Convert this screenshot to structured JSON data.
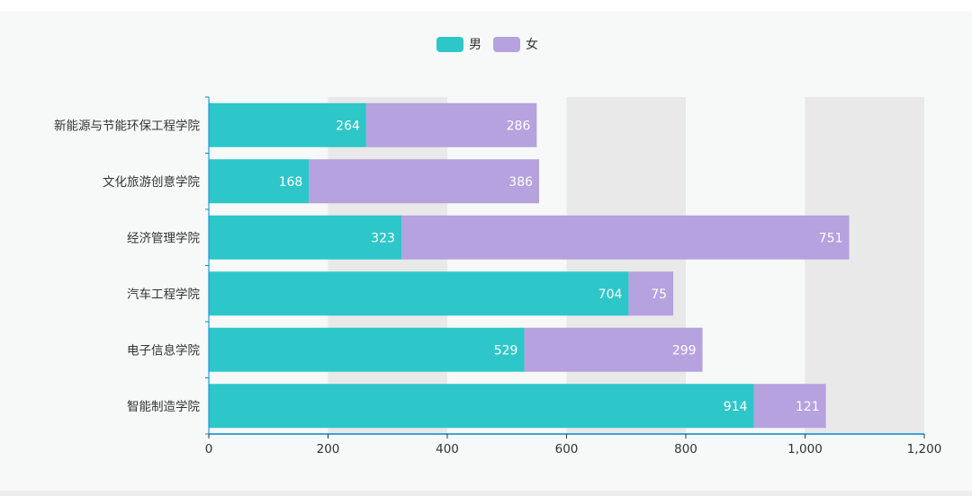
{
  "chart_data": {
    "type": "bar",
    "orientation": "horizontal",
    "stacked": true,
    "categories": [
      "新能源与节能环保工程学院",
      "文化旅游创意学院",
      "经济管理学院",
      "汽车工程学院",
      "电子信息学院",
      "智能制造学院"
    ],
    "series": [
      {
        "name": "男",
        "values": [
          264,
          168,
          323,
          704,
          529,
          914
        ]
      },
      {
        "name": "女",
        "values": [
          286,
          386,
          751,
          75,
          299,
          121
        ]
      }
    ],
    "xlim": [
      0,
      1200
    ],
    "xticks": [
      0,
      200,
      400,
      600,
      800,
      1000,
      1200
    ],
    "xtick_labels": [
      "0",
      "200",
      "400",
      "600",
      "800",
      "1,000",
      "1,200"
    ],
    "legend_position": "top-center",
    "grid": "alternating vertical bands"
  },
  "legend": {
    "male": "男",
    "female": "女"
  },
  "colors": {
    "male": "#2ec7c9",
    "female": "#b6a2de",
    "band": "#e9e9e9",
    "axis": "#008acd"
  }
}
